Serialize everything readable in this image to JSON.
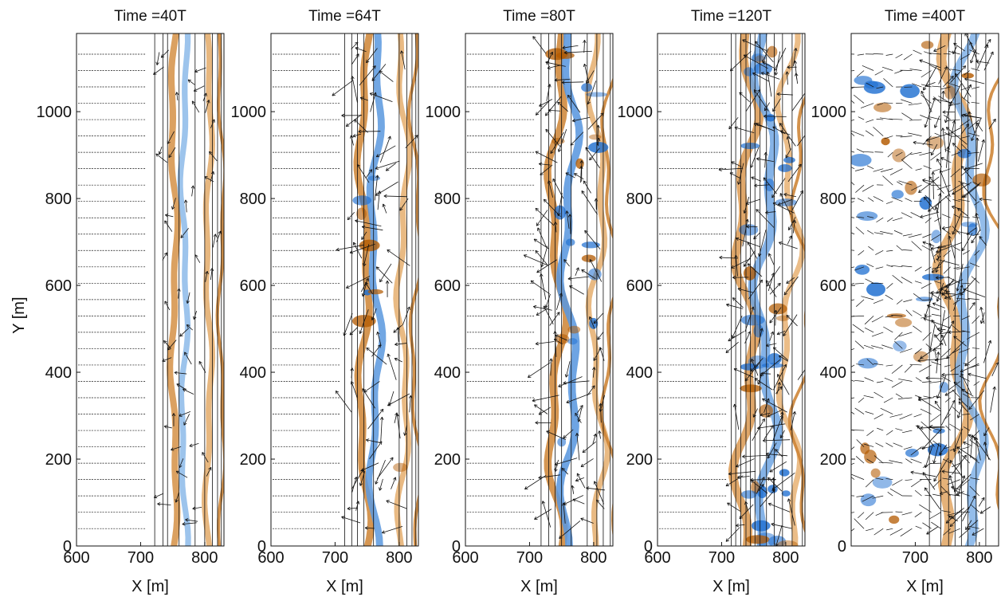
{
  "figure": {
    "colors": {
      "positive_dark": "#b35a00",
      "positive_light": "#f6c58a",
      "negative_dark": "#1f6fd1",
      "negative_light": "#a9cdf0",
      "arrow": "#111111",
      "axes": "#111111"
    }
  },
  "chart_data": [
    {
      "type": "heatmap",
      "title": "Time =40T",
      "xlabel": "X [m]",
      "ylabel": "Y [m]",
      "xlim": [
        600,
        830
      ],
      "ylim": [
        0,
        1180
      ],
      "xticks": [
        600,
        700,
        800
      ],
      "yticks": [
        0,
        200,
        400,
        600,
        800,
        1000
      ],
      "contour_lines_x": [
        722,
        735,
        742,
        760,
        785,
        800,
        812,
        820,
        826
      ],
      "vector_field": "uniform shoreward flow; rip disturbances forming",
      "bands": [
        {
          "x": 752,
          "width": 10,
          "sign": 1,
          "strength": 0.7
        },
        {
          "x": 768,
          "width": 9,
          "sign": -1,
          "strength": 0.35
        },
        {
          "x": 806,
          "width": 9,
          "sign": 1,
          "strength": 0.4
        },
        {
          "x": 826,
          "width": 5,
          "sign": 1,
          "strength": 0.9
        }
      ]
    },
    {
      "type": "heatmap",
      "title": "Time =64T",
      "xlabel": "X [m]",
      "xlim": [
        600,
        830
      ],
      "ylim": [
        0,
        1180
      ],
      "xticks": [
        600,
        700,
        800
      ],
      "yticks": [
        0,
        200,
        400,
        600,
        800,
        1000
      ],
      "contour_lines_x": [
        715,
        726,
        735,
        745,
        760,
        800,
        812,
        820,
        826
      ],
      "vector_field": "shoreward flow; meandering shear-wave jet",
      "bands": [
        {
          "x": 745,
          "width": 11,
          "sign": 1,
          "strength": 0.85
        },
        {
          "x": 763,
          "width": 11,
          "sign": -1,
          "strength": 0.8
        },
        {
          "x": 806,
          "width": 9,
          "sign": 1,
          "strength": 0.35
        },
        {
          "x": 826,
          "width": 5,
          "sign": 1,
          "strength": 0.9
        }
      ]
    },
    {
      "type": "heatmap",
      "title": "Time =80T",
      "xlabel": "X [m]",
      "xlim": [
        600,
        830
      ],
      "ylim": [
        0,
        1180
      ],
      "xticks": [
        600,
        700,
        800
      ],
      "yticks": [
        0,
        200,
        400,
        600,
        800,
        1000
      ],
      "contour_lines_x": [
        718,
        730,
        740,
        750,
        765,
        790,
        805,
        815,
        826
      ],
      "vector_field": "shoreward flow; jet breaking into eddies",
      "bands": [
        {
          "x": 742,
          "width": 12,
          "sign": 1,
          "strength": 0.85
        },
        {
          "x": 762,
          "width": 12,
          "sign": -1,
          "strength": 0.85
        },
        {
          "x": 806,
          "width": 9,
          "sign": 1,
          "strength": 0.35
        },
        {
          "x": 826,
          "width": 5,
          "sign": 1,
          "strength": 0.9
        }
      ]
    },
    {
      "type": "heatmap",
      "title": "Time =120T",
      "xlabel": "X [m]",
      "xlim": [
        600,
        830
      ],
      "ylim": [
        0,
        1180
      ],
      "xticks": [
        600,
        700,
        800
      ],
      "yticks": [
        0,
        200,
        400,
        600,
        800,
        1000
      ],
      "contour_lines_x": [
        715,
        722,
        730,
        738,
        745,
        752,
        760,
        770,
        782,
        795,
        810,
        826
      ],
      "vector_field": "turbulent eddy field near shoreline",
      "bands": [
        {
          "x": 738,
          "width": 14,
          "sign": 1,
          "strength": 0.6
        },
        {
          "x": 768,
          "width": 14,
          "sign": -1,
          "strength": 0.6
        },
        {
          "x": 806,
          "width": 9,
          "sign": 1,
          "strength": 0.3
        },
        {
          "x": 826,
          "width": 5,
          "sign": 1,
          "strength": 0.9
        }
      ]
    },
    {
      "type": "heatmap",
      "title": "Time =400T",
      "xlabel": "X [m]",
      "xlim": [
        600,
        830
      ],
      "ylim": [
        0,
        1180
      ],
      "xticks": [
        700,
        800
      ],
      "yticks": [
        0,
        200,
        400,
        600,
        800,
        1000
      ],
      "contour_lines_x": [
        722,
        740,
        752,
        762,
        772,
        782,
        795,
        810
      ],
      "vector_field": "fully developed eddies spreading offshore",
      "bands": [
        {
          "x": 760,
          "width": 16,
          "sign": 1,
          "strength": 0.45
        },
        {
          "x": 785,
          "width": 14,
          "sign": -1,
          "strength": 0.45
        },
        {
          "x": 826,
          "width": 5,
          "sign": 1,
          "strength": 0.9
        }
      ]
    }
  ]
}
